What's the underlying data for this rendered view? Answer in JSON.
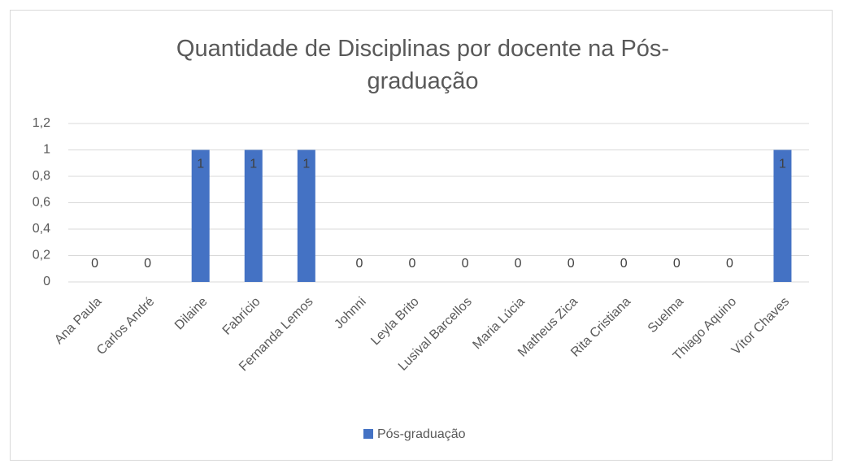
{
  "chart_data": {
    "type": "bar",
    "title": "Quantidade de Disciplinas por docente na Pós-graduação",
    "categories": [
      "Ana Paula",
      "Carlos André",
      "Dilaine",
      "Fabrício",
      "Fernanda Lemos",
      "Johnni",
      "Leyla Brito",
      "Lusival Barcellos",
      "Maria Lúcia",
      "Matheus Zica",
      "Rita Cristiana",
      "Suelma",
      "Thiago Aquino",
      "Vítor Chaves"
    ],
    "series": [
      {
        "name": "Pós-graduação",
        "color": "#4472c4",
        "values": [
          0,
          0,
          1,
          1,
          1,
          0,
          0,
          0,
          0,
          0,
          0,
          0,
          0,
          1
        ]
      }
    ],
    "ylim": [
      0,
      1.2
    ],
    "yticks": [
      0,
      {
        "value": 0.2,
        "label": "0,2"
      },
      {
        "value": 0.4,
        "label": "0,4"
      },
      {
        "value": 0.6,
        "label": "0,6"
      },
      {
        "value": 0.8,
        "label": "0,8"
      },
      1,
      {
        "value": 1.2,
        "label": "1,2"
      }
    ],
    "grid": true,
    "legend": "bottom"
  }
}
